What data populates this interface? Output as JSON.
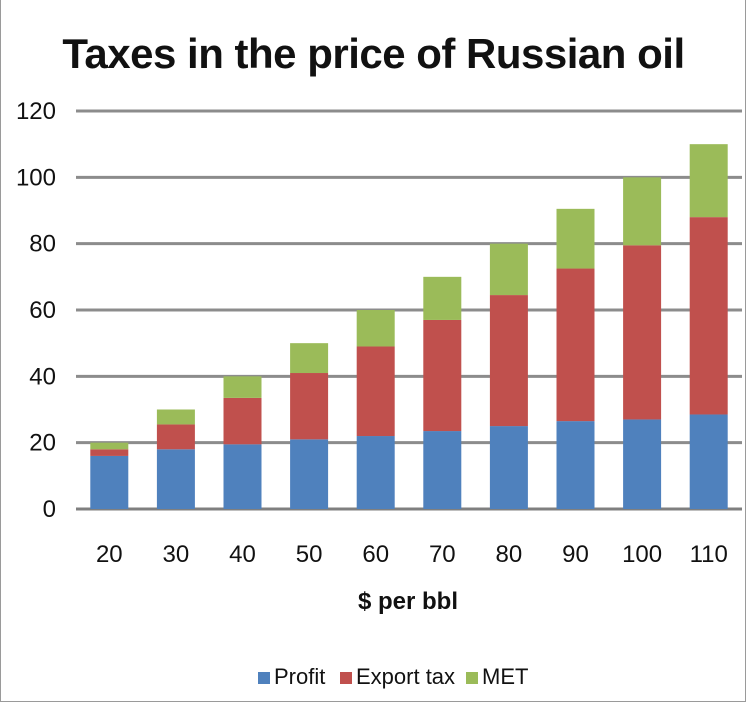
{
  "chart_data": {
    "type": "bar",
    "stacked": true,
    "title": "Taxes in the price of Russian oil",
    "xlabel": "$ per bbl",
    "ylabel": "",
    "categories": [
      "20",
      "30",
      "40",
      "50",
      "60",
      "70",
      "80",
      "90",
      "100",
      "110"
    ],
    "series": [
      {
        "name": "Profit",
        "color": "#4f81bd",
        "values": [
          16,
          18,
          19.5,
          21,
          22,
          23.5,
          25,
          26.5,
          27,
          28.5
        ]
      },
      {
        "name": "Export tax",
        "color": "#c0504d",
        "values": [
          2,
          7.5,
          14,
          20,
          27,
          33.5,
          39.5,
          46,
          52.5,
          59.5
        ]
      },
      {
        "name": "MET",
        "color": "#9bbb59",
        "values": [
          2,
          4.5,
          6.5,
          9,
          11,
          13,
          15.5,
          18,
          20.5,
          22
        ]
      }
    ],
    "ylim": [
      0,
      120
    ],
    "yticks": [
      "0",
      "20",
      "40",
      "60",
      "80",
      "100",
      "120"
    ],
    "grid": true,
    "legend_position": "bottom"
  }
}
